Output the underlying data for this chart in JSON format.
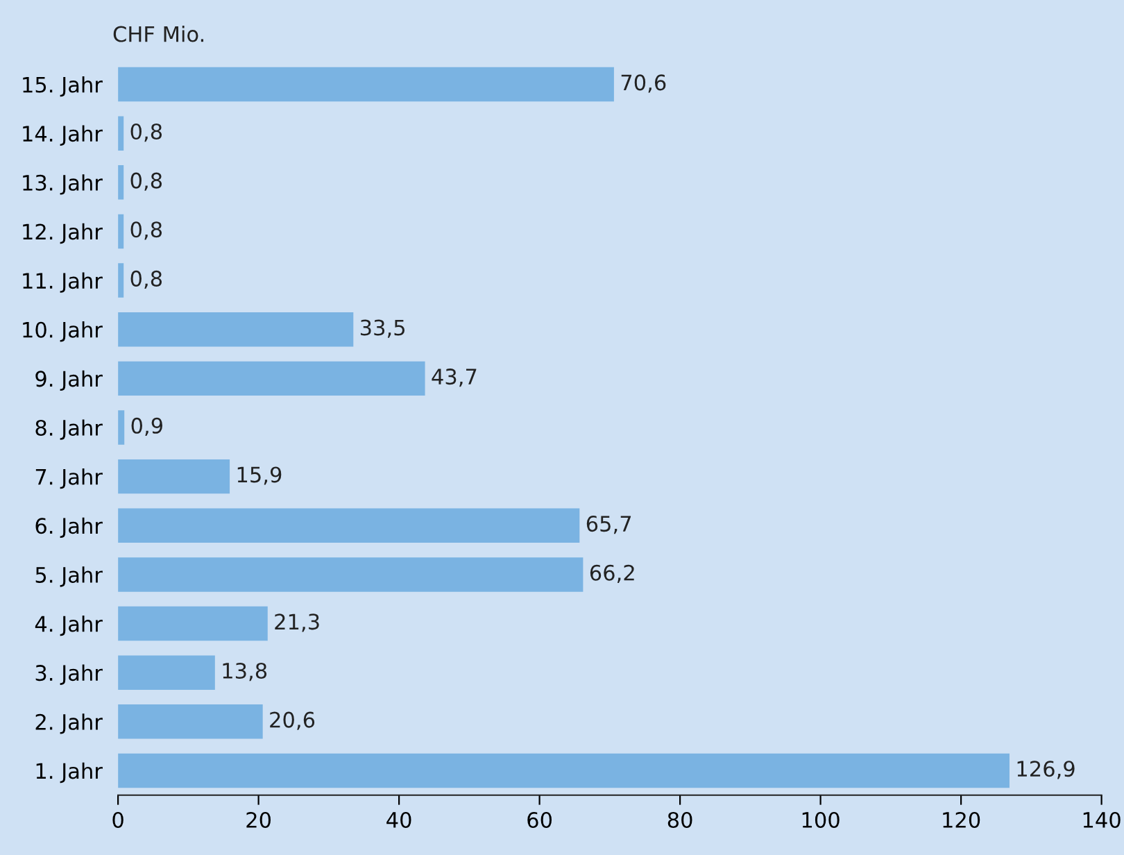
{
  "chart_data": {
    "type": "bar",
    "orientation": "horizontal",
    "categories": [
      "15. Jahr",
      "14. Jahr",
      "13. Jahr",
      "12. Jahr",
      "11. Jahr",
      "10. Jahr",
      "9. Jahr",
      "8. Jahr",
      "7. Jahr",
      "6. Jahr",
      "5. Jahr",
      "4. Jahr",
      "3. Jahr",
      "2. Jahr",
      "1. Jahr"
    ],
    "values": [
      70.6,
      0.8,
      0.8,
      0.8,
      0.8,
      33.5,
      43.7,
      0.9,
      15.9,
      65.7,
      66.2,
      21.3,
      13.8,
      20.6,
      126.9
    ],
    "value_labels": [
      "70,6",
      "0,8",
      "0,8",
      "0,8",
      "0,8",
      "33,5",
      "43,7",
      "0,9",
      "15,9",
      "65,7",
      "66,2",
      "21,3",
      "13,8",
      "20,6",
      "126,9"
    ],
    "color": "#7ab3e2",
    "xlim": [
      0,
      140
    ],
    "xticks": [
      0,
      20,
      40,
      60,
      80,
      100,
      120,
      140
    ],
    "annotations": [
      "CHF Mio."
    ],
    "grid": false,
    "legend": false
  }
}
